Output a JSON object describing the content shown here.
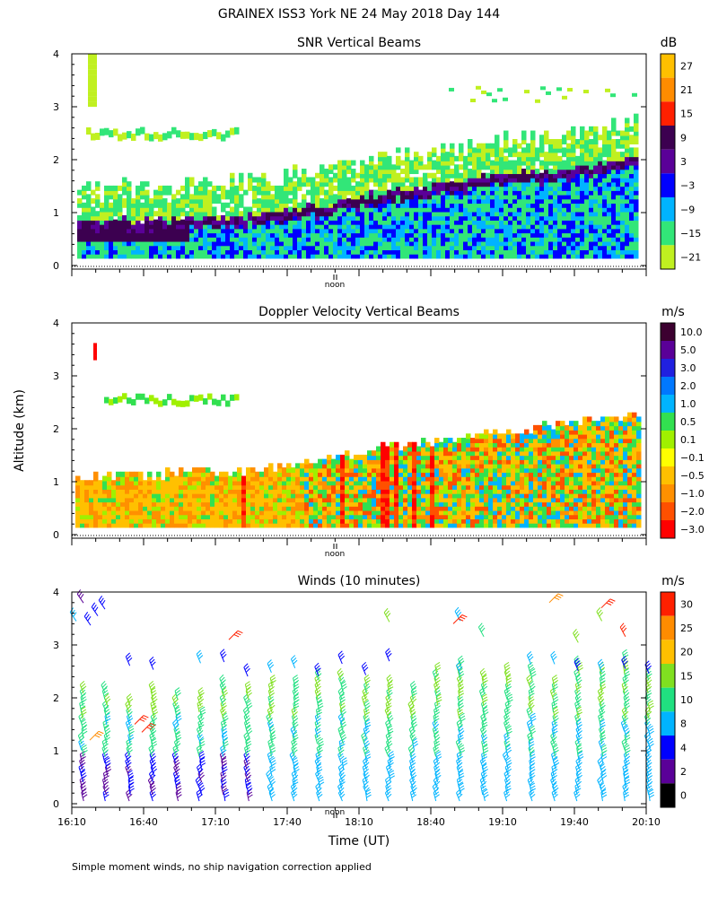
{
  "figure": {
    "title": "GRAINEX ISS3 York NE  24 May 2018 Day 144",
    "ylabel": "Altitude (km)",
    "xlabel": "Time (UT)",
    "noon_label": "noon",
    "footnote": "Simple moment winds, no ship navigation correction applied"
  },
  "chart_data": [
    {
      "type": "heatmap",
      "title": "SNR Vertical Beams",
      "units": "dB",
      "ylim": [
        0,
        4
      ],
      "yticks": [
        "0",
        "1",
        "2",
        "3",
        "4"
      ],
      "colorbar": {
        "labels": [
          "27",
          "21",
          "15",
          "9",
          "3",
          "−3",
          "−9",
          "−15",
          "−21"
        ],
        "colors": [
          "#ffc000",
          "#ff8c00",
          "#ff2000",
          "#3c0050",
          "#5a0098",
          "#0000ff",
          "#00b4ff",
          "#32e678",
          "#c0f020"
        ]
      },
      "features": {
        "strong_layer_top_km": [
          0.8,
          0.85,
          0.9,
          1.1,
          1.4,
          1.6,
          1.8,
          2.0
        ],
        "upper_layer_km": [
          2.5,
          3.3
        ]
      }
    },
    {
      "type": "heatmap",
      "title": "Doppler Velocity Vertical Beams",
      "units": "m/s",
      "ylim": [
        0,
        4
      ],
      "yticks": [
        "0",
        "1",
        "2",
        "3",
        "4"
      ],
      "colorbar": {
        "labels": [
          "10.0",
          "5.0",
          "3.0",
          "2.0",
          "1.0",
          "0.5",
          "0.1",
          "−0.1",
          "−0.5",
          "−1.0",
          "−2.0",
          "−3.0"
        ],
        "colors": [
          "#3c0030",
          "#5a0098",
          "#2020e0",
          "#0078ff",
          "#00b4ff",
          "#32e050",
          "#a0f000",
          "#ffff00",
          "#ffc000",
          "#ff9000",
          "#ff5000",
          "#ff0000"
        ]
      }
    },
    {
      "type": "scatter",
      "title": "Winds (10 minutes)",
      "units": "m/s",
      "ylim": [
        0,
        4
      ],
      "yticks": [
        "0",
        "1",
        "2",
        "3",
        "4"
      ],
      "xlim": [
        "16:10",
        "20:10"
      ],
      "xticks": [
        "16:10",
        "16:40",
        "17:10",
        "17:40",
        "18:10",
        "18:40",
        "19:10",
        "19:40",
        "20:10"
      ],
      "colorbar": {
        "labels": [
          "30",
          "25",
          "20",
          "15",
          "10",
          "8",
          "4",
          "2",
          "0"
        ],
        "colors": [
          "#ff2000",
          "#ff8c00",
          "#ffc000",
          "#80e020",
          "#20e080",
          "#00b4ff",
          "#0000ff",
          "#5a0098",
          "#000000"
        ]
      }
    }
  ]
}
